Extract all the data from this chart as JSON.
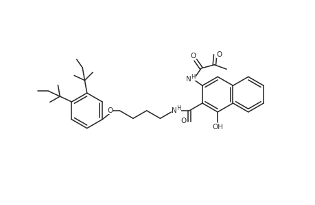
{
  "bg_color": "#ffffff",
  "line_color": "#2a2a2a",
  "line_width": 1.15,
  "figsize": [
    4.6,
    3.0
  ],
  "dpi": 100,
  "xlim": [
    0,
    460
  ],
  "ylim": [
    0,
    300
  ]
}
